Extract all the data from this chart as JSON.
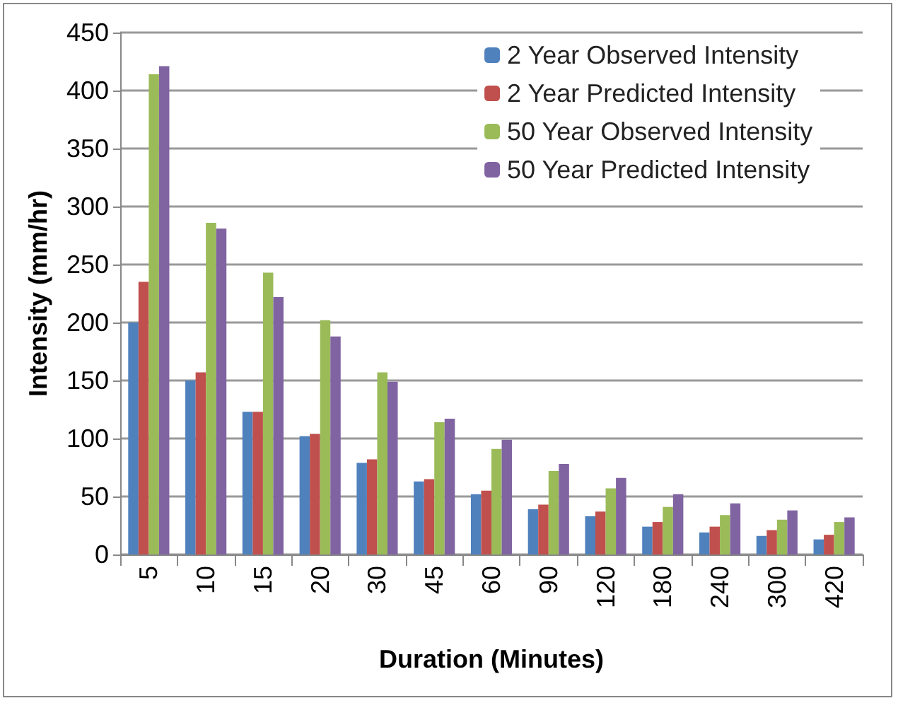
{
  "chart_data": {
    "type": "bar",
    "xlabel": "Duration (Minutes)",
    "ylabel": "Intensity (mm/hr)",
    "categories": [
      "5",
      "10",
      "15",
      "20",
      "30",
      "45",
      "60",
      "90",
      "120",
      "180",
      "240",
      "300",
      "420"
    ],
    "series": [
      {
        "name": "2 Year Observed Intensity",
        "color": "#4f81bd",
        "values": [
          200,
          150,
          123,
          102,
          79,
          63,
          52,
          39,
          33,
          24,
          19,
          16,
          13
        ]
      },
      {
        "name": "2 Year Predicted Intensity",
        "color": "#c0504d",
        "values": [
          235,
          157,
          123,
          104,
          82,
          65,
          55,
          43,
          37,
          28,
          24,
          21,
          17
        ]
      },
      {
        "name": "50 Year Observed Intensity",
        "color": "#9bbb59",
        "values": [
          414,
          286,
          243,
          202,
          157,
          114,
          91,
          72,
          57,
          41,
          34,
          30,
          28
        ]
      },
      {
        "name": "50 Year Predicted Intensity",
        "color": "#8064a2",
        "values": [
          421,
          281,
          222,
          188,
          149,
          117,
          99,
          78,
          66,
          52,
          44,
          38,
          32
        ]
      }
    ],
    "ylim": [
      0,
      450
    ],
    "yticks": [
      0,
      50,
      100,
      150,
      200,
      250,
      300,
      350,
      400,
      450
    ],
    "grid": "y",
    "legend": "top right"
  }
}
